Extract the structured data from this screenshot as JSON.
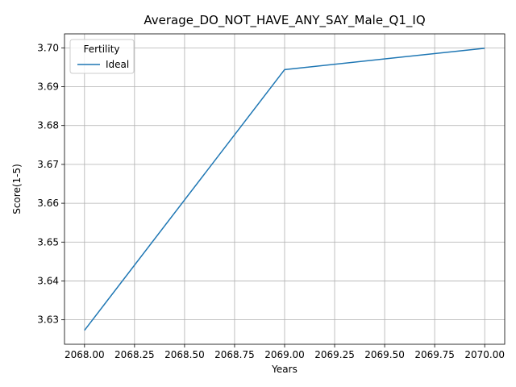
{
  "chart_data": {
    "type": "line",
    "title": "Average_DO_NOT_HAVE_ANY_SAY_Male_Q1_IQ",
    "xlabel": "Years",
    "ylabel": "Score(1-5)",
    "xlim": [
      2067.9,
      2070.1
    ],
    "ylim": [
      3.6237,
      3.7036
    ],
    "x_ticks": [
      2068.0,
      2068.25,
      2068.5,
      2068.75,
      2069.0,
      2069.25,
      2069.5,
      2069.75,
      2070.0
    ],
    "x_tick_labels": [
      "2068.00",
      "2068.25",
      "2068.50",
      "2068.75",
      "2069.00",
      "2069.25",
      "2069.50",
      "2069.75",
      "2070.00"
    ],
    "y_ticks": [
      3.63,
      3.64,
      3.65,
      3.66,
      3.67,
      3.68,
      3.69,
      3.7
    ],
    "y_tick_labels": [
      "3.63",
      "3.64",
      "3.65",
      "3.66",
      "3.67",
      "3.68",
      "3.69",
      "3.70"
    ],
    "grid": true,
    "legend": {
      "title": "Fertility",
      "placement": "top-left"
    },
    "series": [
      {
        "name": "Ideal",
        "color": "#1f77b4",
        "x": [
          2068,
          2069,
          2070
        ],
        "y": [
          3.6273,
          3.6944,
          3.6999
        ]
      }
    ]
  }
}
